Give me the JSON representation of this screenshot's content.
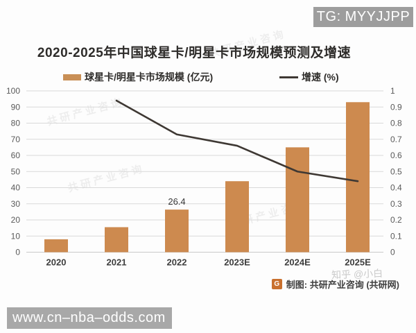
{
  "overlays": {
    "tg_badge": "TG: MYYJJPP",
    "url_watermark": "www.cn–nba–odds.com",
    "diagonal_watermark": "共研产业咨询",
    "faint_watermark": "知乎 @小白"
  },
  "footer": {
    "credit": "制图: 共研产业咨询 (共研网)",
    "logo_glyph": "G"
  },
  "chart_data": {
    "type": "bar+line",
    "title": "2020-2025年中国球星卡/明星卡市场规模预测及增速",
    "categories": [
      "2020",
      "2021",
      "2022",
      "2023E",
      "2024E",
      "2025E"
    ],
    "series": [
      {
        "name": "球星卡/明星卡市场规模",
        "legend": "球星卡/明星卡市场规模 (亿元)",
        "type": "bar",
        "axis": "left",
        "unit": "亿元",
        "color": "#cd8a4f",
        "values": [
          8,
          15.5,
          26.4,
          44,
          65,
          93
        ]
      },
      {
        "name": "增速",
        "legend": "增速 (%)",
        "type": "line",
        "axis": "right",
        "unit": "%",
        "color": "#3e3833",
        "values": [
          null,
          0.94,
          0.73,
          0.66,
          0.5,
          0.44
        ]
      }
    ],
    "data_labels": [
      {
        "category": "2022",
        "series": "球星卡/明星卡市场规模",
        "text": "26.4"
      }
    ],
    "left_axis": {
      "min": 0,
      "max": 100,
      "step": 10
    },
    "right_axis": {
      "min": 0,
      "max": 1,
      "step": 0.1
    },
    "grid": true,
    "legend_position": "top"
  }
}
